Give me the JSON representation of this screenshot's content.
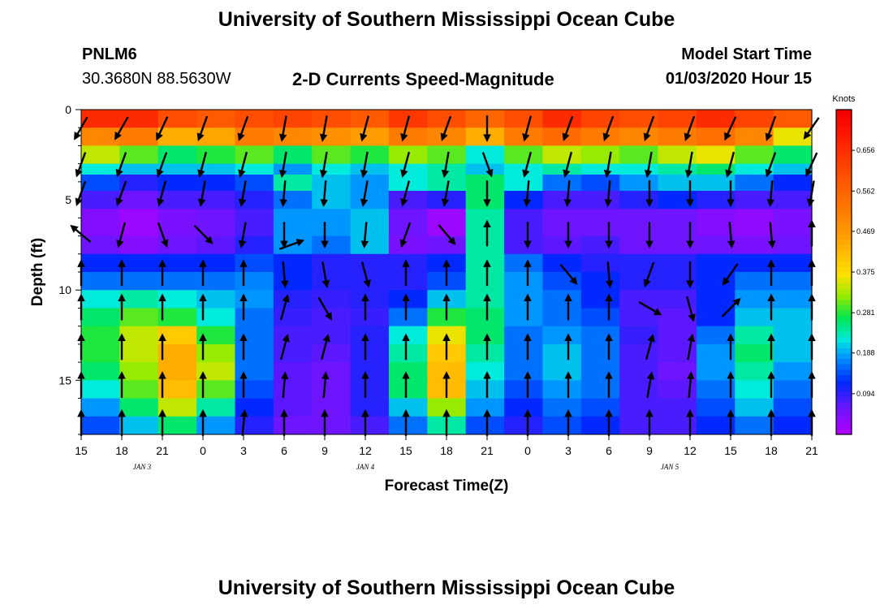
{
  "titles": {
    "main": "University of Southern Mississippi Ocean Cube",
    "footer": "University of Southern Mississippi Ocean Cube"
  },
  "station": {
    "id": "PNLM6",
    "coords": "30.3680N 88.5630W"
  },
  "model": {
    "label": "Model Start Time",
    "start": "01/03/2020 Hour 15"
  },
  "chart_data": {
    "type": "heatmap",
    "title": "2-D Currents Speed-Magnitude",
    "xlabel": "Forecast Time(Z)",
    "ylabel": "Depth (ft)",
    "x_tick_labels": [
      "15",
      "18",
      "21",
      "0",
      "3",
      "6",
      "9",
      "12",
      "15",
      "18",
      "21",
      "0",
      "3",
      "6",
      "9",
      "12",
      "15",
      "18",
      "21"
    ],
    "date_labels": [
      {
        "text": "JAN 3",
        "tick_index": 1.5
      },
      {
        "text": "JAN 4",
        "tick_index": 7
      },
      {
        "text": "JAN 5",
        "tick_index": 14.5
      }
    ],
    "y_ticks": [
      0,
      5,
      10,
      15
    ],
    "y_range": [
      0,
      18
    ],
    "x_range_hours": [
      0,
      54
    ],
    "colorbar": {
      "unit": "Knots",
      "tick_values": [
        0.656,
        0.562,
        0.469,
        0.375,
        0.281,
        0.188,
        0.094
      ],
      "tick_labels": [
        "0.656",
        "0.562",
        "0.469",
        "0.375",
        "0.281",
        "0.188",
        "0.094"
      ],
      "range": [
        0.0,
        0.75
      ]
    },
    "depth_bands": [
      {
        "top": 0,
        "bottom": 1,
        "speed": [
          0.66,
          0.66,
          0.6,
          0.58,
          0.6,
          0.62,
          0.6,
          0.58,
          0.64,
          0.6,
          0.56,
          0.6,
          0.66,
          0.62,
          0.6,
          0.62,
          0.66,
          0.62,
          0.58
        ]
      },
      {
        "top": 1,
        "bottom": 2,
        "speed": [
          0.5,
          0.52,
          0.44,
          0.45,
          0.52,
          0.5,
          0.48,
          0.46,
          0.52,
          0.5,
          0.44,
          0.52,
          0.55,
          0.52,
          0.5,
          0.52,
          0.54,
          0.5,
          0.36
        ]
      },
      {
        "top": 2,
        "bottom": 3,
        "speed": [
          0.34,
          0.3,
          0.26,
          0.28,
          0.3,
          0.26,
          0.3,
          0.28,
          0.32,
          0.3,
          0.22,
          0.3,
          0.34,
          0.32,
          0.3,
          0.34,
          0.36,
          0.3,
          0.26
        ]
      },
      {
        "top": 3,
        "bottom": 3.6,
        "speed": [
          0.22,
          0.2,
          0.2,
          0.2,
          0.22,
          0.18,
          0.22,
          0.2,
          0.22,
          0.24,
          0.2,
          0.22,
          0.24,
          0.22,
          0.22,
          0.24,
          0.26,
          0.22,
          0.2
        ]
      },
      {
        "top": 3.6,
        "bottom": 4.5,
        "speed": [
          0.14,
          0.1,
          0.12,
          0.12,
          0.14,
          0.24,
          0.2,
          0.18,
          0.22,
          0.24,
          0.26,
          0.22,
          0.16,
          0.14,
          0.18,
          0.2,
          0.2,
          0.16,
          0.12
        ]
      },
      {
        "top": 4.5,
        "bottom": 5.5,
        "speed": [
          0.08,
          0.06,
          0.08,
          0.08,
          0.1,
          0.16,
          0.2,
          0.18,
          0.08,
          0.1,
          0.26,
          0.12,
          0.08,
          0.08,
          0.1,
          0.12,
          0.1,
          0.08,
          0.08
        ]
      },
      {
        "top": 5.5,
        "bottom": 7,
        "speed": [
          0.04,
          0.02,
          0.05,
          0.06,
          0.08,
          0.18,
          0.18,
          0.2,
          0.06,
          0.02,
          0.24,
          0.08,
          0.06,
          0.06,
          0.06,
          0.06,
          0.04,
          0.03,
          0.05
        ]
      },
      {
        "top": 7,
        "bottom": 8,
        "speed": [
          0.06,
          0.04,
          0.06,
          0.07,
          0.1,
          0.18,
          0.16,
          0.2,
          0.05,
          0.06,
          0.24,
          0.08,
          0.07,
          0.08,
          0.06,
          0.06,
          0.06,
          0.05,
          0.06
        ]
      },
      {
        "top": 8,
        "bottom": 9,
        "speed": [
          0.12,
          0.12,
          0.12,
          0.12,
          0.14,
          0.12,
          0.1,
          0.1,
          0.1,
          0.12,
          0.24,
          0.16,
          0.12,
          0.1,
          0.1,
          0.1,
          0.12,
          0.12,
          0.12
        ]
      },
      {
        "top": 9,
        "bottom": 10,
        "speed": [
          0.16,
          0.16,
          0.16,
          0.16,
          0.17,
          0.12,
          0.1,
          0.1,
          0.1,
          0.14,
          0.24,
          0.18,
          0.14,
          0.12,
          0.1,
          0.1,
          0.12,
          0.16,
          0.16
        ]
      },
      {
        "top": 10,
        "bottom": 11,
        "speed": [
          0.22,
          0.24,
          0.22,
          0.2,
          0.18,
          0.1,
          0.09,
          0.1,
          0.12,
          0.2,
          0.24,
          0.18,
          0.16,
          0.12,
          0.08,
          0.08,
          0.12,
          0.18,
          0.18
        ]
      },
      {
        "top": 11,
        "bottom": 12,
        "speed": [
          0.26,
          0.3,
          0.28,
          0.22,
          0.16,
          0.09,
          0.08,
          0.09,
          0.16,
          0.28,
          0.26,
          0.18,
          0.16,
          0.14,
          0.08,
          0.07,
          0.12,
          0.2,
          0.2
        ]
      },
      {
        "top": 12,
        "bottom": 13,
        "speed": [
          0.28,
          0.34,
          0.4,
          0.28,
          0.16,
          0.08,
          0.08,
          0.1,
          0.22,
          0.36,
          0.26,
          0.16,
          0.18,
          0.16,
          0.09,
          0.07,
          0.16,
          0.24,
          0.2
        ]
      },
      {
        "top": 13,
        "bottom": 14,
        "speed": [
          0.28,
          0.34,
          0.44,
          0.32,
          0.16,
          0.08,
          0.07,
          0.1,
          0.24,
          0.4,
          0.24,
          0.16,
          0.2,
          0.16,
          0.08,
          0.07,
          0.18,
          0.26,
          0.2
        ]
      },
      {
        "top": 14,
        "bottom": 15,
        "speed": [
          0.26,
          0.32,
          0.44,
          0.34,
          0.16,
          0.07,
          0.06,
          0.1,
          0.26,
          0.42,
          0.22,
          0.16,
          0.2,
          0.16,
          0.08,
          0.06,
          0.18,
          0.24,
          0.18
        ]
      },
      {
        "top": 15,
        "bottom": 16,
        "speed": [
          0.22,
          0.3,
          0.42,
          0.3,
          0.14,
          0.07,
          0.06,
          0.1,
          0.26,
          0.42,
          0.2,
          0.14,
          0.18,
          0.16,
          0.08,
          0.07,
          0.16,
          0.22,
          0.16
        ]
      },
      {
        "top": 16,
        "bottom": 17,
        "speed": [
          0.18,
          0.26,
          0.34,
          0.24,
          0.12,
          0.07,
          0.06,
          0.1,
          0.2,
          0.32,
          0.18,
          0.12,
          0.16,
          0.14,
          0.08,
          0.08,
          0.14,
          0.2,
          0.14
        ]
      },
      {
        "top": 17,
        "bottom": 18,
        "speed": [
          0.14,
          0.2,
          0.26,
          0.18,
          0.1,
          0.06,
          0.06,
          0.08,
          0.16,
          0.24,
          0.14,
          0.1,
          0.14,
          0.12,
          0.08,
          0.08,
          0.12,
          0.16,
          0.12
        ]
      }
    ],
    "vector_depths": [
      1,
      3,
      4.6,
      6.9,
      9.1,
      11,
      13.2,
      15.3,
      17.4
    ],
    "vectors": [
      [
        210,
        210,
        205,
        200,
        200,
        190,
        190,
        195,
        195,
        200,
        180,
        195,
        200,
        200,
        200,
        200,
        205,
        200,
        215
      ],
      [
        200,
        200,
        200,
        195,
        195,
        190,
        190,
        190,
        195,
        190,
        160,
        195,
        195,
        190,
        190,
        190,
        195,
        200,
        205
      ],
      [
        200,
        200,
        195,
        190,
        190,
        185,
        185,
        190,
        195,
        190,
        180,
        185,
        185,
        185,
        180,
        180,
        180,
        185,
        190
      ],
      [
        310,
        195,
        160,
        135,
        190,
        180,
        180,
        185,
        200,
        140,
        0,
        180,
        180,
        180,
        180,
        180,
        175,
        175,
        0
      ],
      [
        0,
        0,
        0,
        0,
        0,
        175,
        170,
        165,
        0,
        0,
        0,
        0,
        140,
        175,
        200,
        180,
        215,
        0,
        0
      ],
      [
        0,
        0,
        0,
        0,
        0,
        15,
        150,
        0,
        0,
        0,
        0,
        0,
        0,
        0,
        120,
        165,
        45,
        0,
        0
      ],
      [
        0,
        0,
        0,
        0,
        0,
        15,
        15,
        0,
        0,
        0,
        0,
        0,
        0,
        0,
        15,
        10,
        0,
        0,
        0
      ],
      [
        0,
        0,
        0,
        0,
        0,
        5,
        5,
        0,
        0,
        0,
        0,
        0,
        0,
        0,
        10,
        5,
        0,
        0,
        0
      ],
      [
        0,
        0,
        0,
        0,
        5,
        0,
        0,
        0,
        0,
        0,
        0,
        0,
        0,
        0,
        0,
        0,
        0,
        0,
        0
      ]
    ],
    "extra_vectors": [
      {
        "hour": 15.5,
        "depth": 7.5,
        "angle": 70
      }
    ]
  },
  "colors": {
    "arrow": "#000000",
    "axis": "#000000"
  }
}
